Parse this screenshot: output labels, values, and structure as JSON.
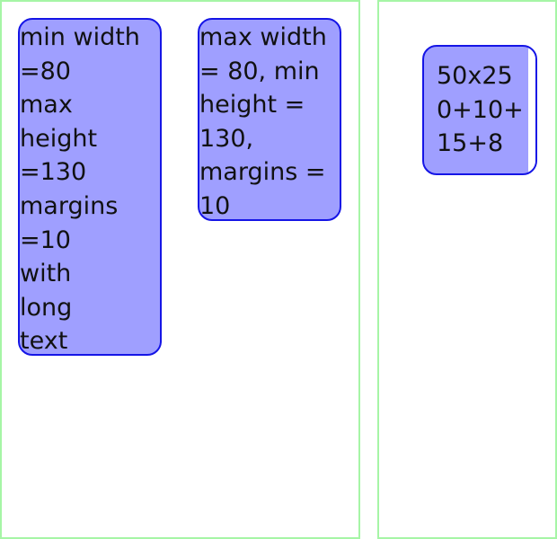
{
  "boxes": {
    "min_width": {
      "label": "min width\n=80\nmax\nheight\n=130\nmargins\n=10\nwith\nlong\ntext"
    },
    "max_width": {
      "label": "max width\n= 80, min\nheight =\n130,\nmargins =\n10"
    },
    "fixed_size": {
      "label": "50x25\n0+10+\n15+8"
    }
  },
  "colors": {
    "panel_border": "#a6f5a6",
    "box_fill": "#9f9fff",
    "box_border": "#1515e6",
    "text": "#111111"
  }
}
